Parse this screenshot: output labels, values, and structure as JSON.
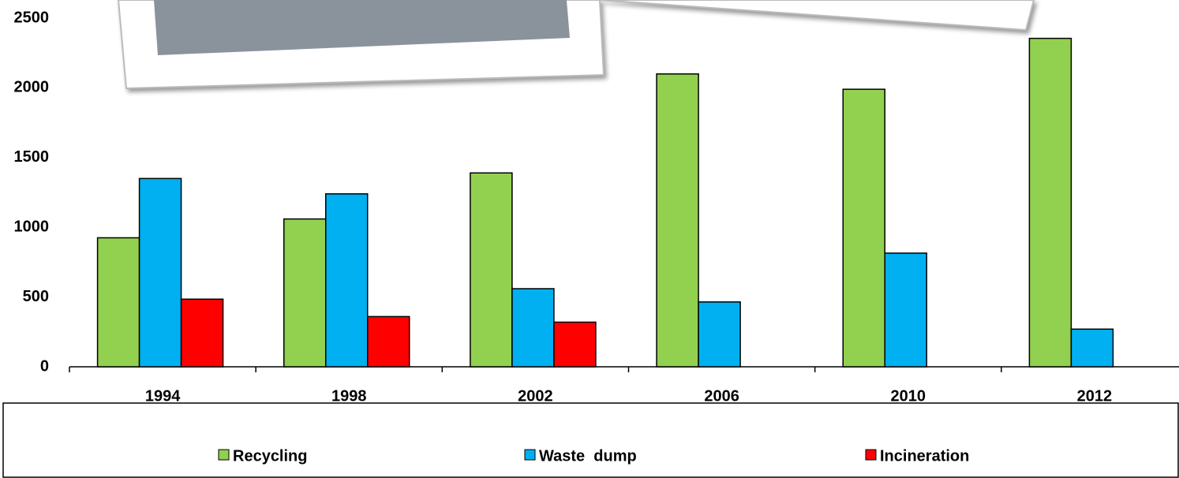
{
  "chart_data": {
    "type": "bar",
    "categories": [
      "1994",
      "1998",
      "2002",
      "2006",
      "2010",
      "2012"
    ],
    "series": [
      {
        "name": "Recycling",
        "color": "#92d050",
        "values": [
          925,
          1060,
          1390,
          2100,
          1990,
          2355
        ]
      },
      {
        "name": "Waste  dump",
        "color": "#00b0f0",
        "values": [
          1350,
          1240,
          560,
          465,
          815,
          270
        ]
      },
      {
        "name": "Incineration",
        "color": "#ff0000",
        "values": [
          485,
          360,
          320,
          null,
          null,
          null
        ]
      }
    ],
    "ylim": [
      0,
      2500
    ],
    "yticks": [
      0,
      500,
      1000,
      1500,
      2000,
      2500
    ],
    "grid": false
  }
}
